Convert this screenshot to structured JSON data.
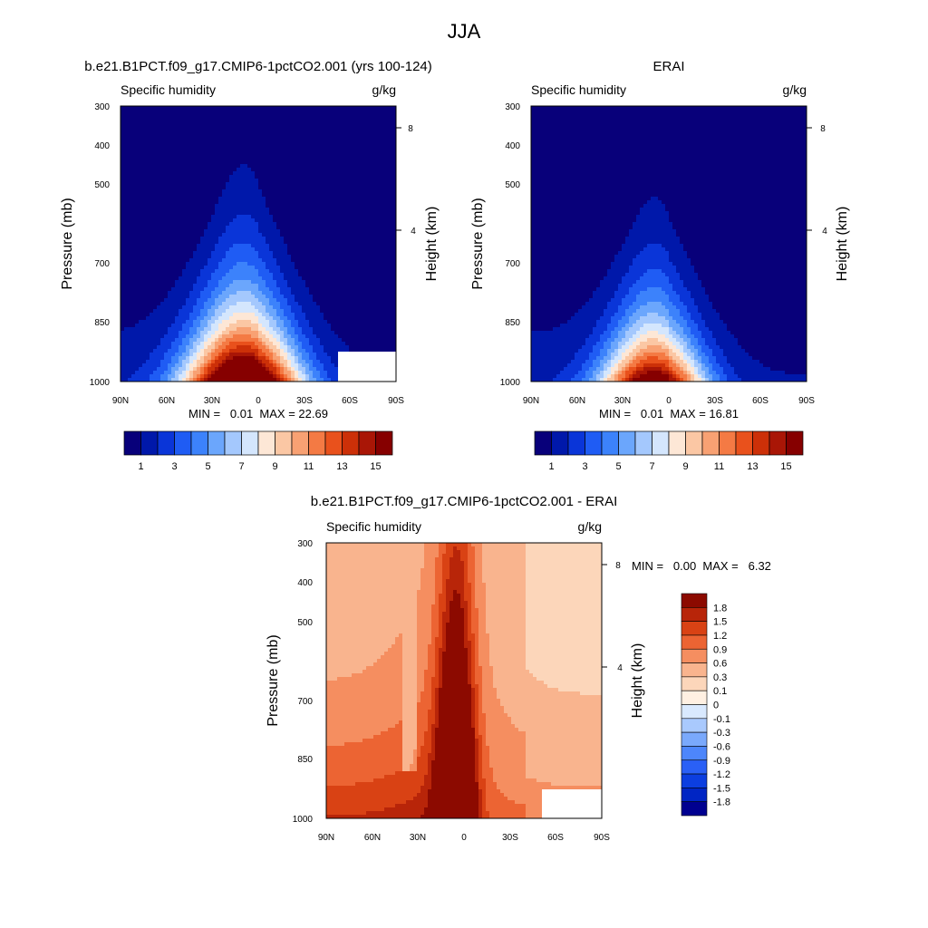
{
  "figure_title": "JJA",
  "colors": {
    "abs_scale": [
      "#08007a",
      "#0018aa",
      "#0a35d8",
      "#1f5cf4",
      "#3c82fb",
      "#6ba6fc",
      "#a4c8fd",
      "#d4e6fd",
      "#fde7d6",
      "#fbc7a4",
      "#f8a173",
      "#f47a44",
      "#e9511c",
      "#cc3008",
      "#a91606",
      "#860000"
    ],
    "diff_scale": [
      "#000090",
      "#0025c4",
      "#0c3ee0",
      "#2a60f6",
      "#4d86fb",
      "#7aa9fc",
      "#a9c9fd",
      "#d9e9fe",
      "#fff0e2",
      "#fcd6ba",
      "#f9b48e",
      "#f58e60",
      "#ec6433",
      "#d94214",
      "#b82509",
      "#8c0a00"
    ]
  },
  "panels": [
    {
      "title": "b.e21.B1PCT.f09_g17.CMIP6-1pctCO2.001 (yrs 100-124)",
      "left_label": "Specific humidity",
      "right_label": "g/kg",
      "xlabel_ticks": [
        "90N",
        "60N",
        "30N",
        "0",
        "30S",
        "60S",
        "90S"
      ],
      "ylabel": "Pressure (mb)",
      "y_ticks": [
        "300",
        "400",
        "500",
        "700",
        "850",
        "1000"
      ],
      "right_axis_label": "Height (km)",
      "right_ticks": [
        "8",
        "4"
      ],
      "stats": "MIN =   0.01  MAX = 22.69",
      "colorbar_labels": [
        "1",
        "3",
        "5",
        "7",
        "9",
        "11",
        "13",
        "15"
      ]
    },
    {
      "title": "ERAI",
      "left_label": "Specific humidity",
      "right_label": "g/kg",
      "xlabel_ticks": [
        "90N",
        "60N",
        "30N",
        "0",
        "30S",
        "60S",
        "90S"
      ],
      "ylabel": "Pressure (mb)",
      "y_ticks": [
        "300",
        "400",
        "500",
        "700",
        "850",
        "1000"
      ],
      "right_axis_label": "Height (km)",
      "right_ticks": [
        "8",
        "4"
      ],
      "stats": "MIN =   0.01  MAX = 16.81",
      "colorbar_labels": [
        "1",
        "3",
        "5",
        "7",
        "9",
        "11",
        "13",
        "15"
      ]
    },
    {
      "title": "b.e21.B1PCT.f09_g17.CMIP6-1pctCO2.001 - ERAI",
      "left_label": "Specific humidity",
      "right_label": "g/kg",
      "xlabel_ticks": [
        "90N",
        "60N",
        "30N",
        "0",
        "30S",
        "60S",
        "90S"
      ],
      "ylabel": "Pressure (mb)",
      "y_ticks": [
        "300",
        "400",
        "500",
        "700",
        "850",
        "1000"
      ],
      "right_axis_label": "Height (km)",
      "right_ticks": [
        "8",
        "4"
      ],
      "stats": "MIN =   0.00  MAX =   6.32",
      "colorbar_labels": [
        "1.8",
        "1.5",
        "1.2",
        "0.9",
        "0.6",
        "0.3",
        "0.1",
        "0",
        "-0.1",
        "-0.3",
        "-0.6",
        "-0.9",
        "-1.2",
        "-1.5",
        "-1.8"
      ]
    }
  ],
  "chart_data": [
    {
      "type": "heatmap",
      "title": "b.e21.B1PCT.f09_g17.CMIP6-1pctCO2.001 (yrs 100-124)",
      "variable": "Specific humidity",
      "units": "g/kg",
      "x": "latitude (90N to 90S)",
      "y": "pressure (mb)",
      "ylim": [
        1000,
        300
      ],
      "levels": [
        1,
        2,
        3,
        4,
        5,
        6,
        7,
        8,
        9,
        10,
        11,
        12,
        13,
        14,
        15
      ],
      "peak": {
        "lat": 10,
        "p": 1000,
        "value": 22.69
      },
      "min": 0.01,
      "max": 22.69,
      "masked_region": {
        "lat": [
          -50,
          -90
        ],
        "p": [
          1000,
          870
        ]
      }
    },
    {
      "type": "heatmap",
      "title": "ERAI",
      "variable": "Specific humidity",
      "units": "g/kg",
      "x": "latitude (90N to 90S)",
      "y": "pressure (mb)",
      "ylim": [
        1000,
        300
      ],
      "levels": [
        1,
        2,
        3,
        4,
        5,
        6,
        7,
        8,
        9,
        10,
        11,
        12,
        13,
        14,
        15
      ],
      "peak": {
        "lat": 10,
        "p": 1000,
        "value": 16.81
      },
      "min": 0.01,
      "max": 16.81
    },
    {
      "type": "heatmap",
      "title": "b.e21.B1PCT.f09_g17.CMIP6-1pctCO2.001 - ERAI",
      "variable": "Specific humidity",
      "units": "g/kg",
      "x": "latitude (90N to 90S)",
      "y": "pressure (mb)",
      "ylim": [
        1000,
        300
      ],
      "levels": [
        -1.8,
        -1.5,
        -1.2,
        -0.9,
        -0.6,
        -0.3,
        -0.1,
        0,
        0.1,
        0.3,
        0.6,
        0.9,
        1.2,
        1.5,
        1.8
      ],
      "min": 0.0,
      "max": 6.32,
      "masked_region": {
        "lat": [
          -50,
          -90
        ],
        "p": [
          1000,
          870
        ]
      }
    }
  ]
}
